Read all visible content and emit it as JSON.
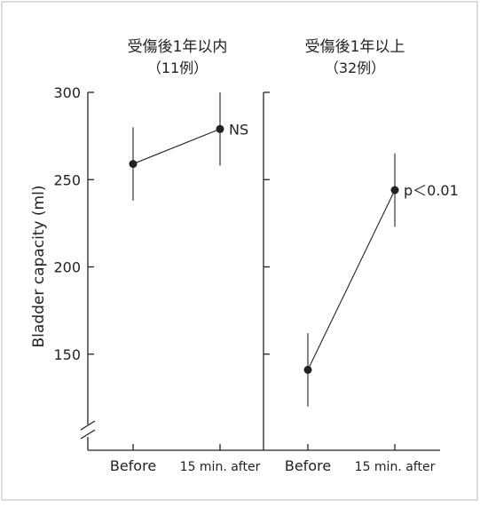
{
  "chart_data": {
    "type": "scatter",
    "ylabel": "Bladder capacity (ml)",
    "ylim": [
      100,
      300
    ],
    "yticks": [
      150,
      200,
      250,
      300
    ],
    "axis_break": true,
    "grid": false,
    "panels": [
      {
        "title_line1": "受傷後1年以内",
        "title_line2": "（11例）",
        "categories": [
          "Before",
          "15 min. after"
        ],
        "means": [
          259,
          279
        ],
        "errors": [
          {
            "low": 238,
            "high": 280
          },
          {
            "low": 258,
            "high": 300
          }
        ],
        "annotation": "NS"
      },
      {
        "title_line1": "受傷後1年以上",
        "title_line2": "（32例）",
        "categories": [
          "Before",
          "15 min. after"
        ],
        "means": [
          141,
          244
        ],
        "errors": [
          {
            "low": 120,
            "high": 162
          },
          {
            "low": 223,
            "high": 265
          }
        ],
        "annotation": "p＜0.01"
      }
    ],
    "colors": {
      "ink": "#222222",
      "frame": "#bbbbbb",
      "background": "#ffffff"
    }
  }
}
